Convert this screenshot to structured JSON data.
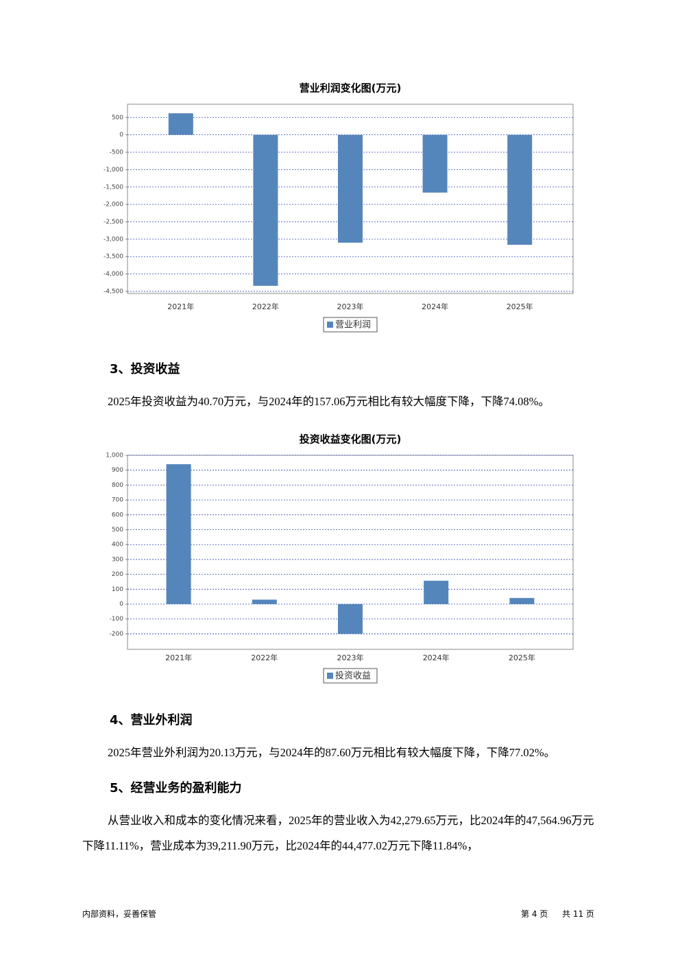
{
  "chart_data": [
    {
      "type": "bar",
      "title": "营业利润变化图(万元)",
      "categories": [
        "2021年",
        "2022年",
        "2023年",
        "2024年",
        "2025年"
      ],
      "series": [
        {
          "name": "营业利润",
          "color": "#5586bb",
          "values": [
            620,
            -4340,
            -3100,
            -1660,
            -3160
          ]
        }
      ],
      "ylim": [
        -4560,
        880
      ],
      "yticks": [
        500,
        0,
        -500,
        {
          "value": -1000,
          "label": "-1,000"
        },
        {
          "value": -1500,
          "label": "-1,500"
        },
        {
          "value": -2000,
          "label": "-2,000"
        },
        {
          "value": -2500,
          "label": "-2,500"
        },
        {
          "value": -3000,
          "label": "-3,000"
        },
        {
          "value": -3500,
          "label": "-3,500"
        },
        {
          "value": -4000,
          "label": "-4,000"
        },
        {
          "value": -4500,
          "label": "-4,500"
        }
      ],
      "grid": true
    },
    {
      "type": "bar",
      "title": "投资收益变化图(万元)",
      "categories": [
        "2021年",
        "2022年",
        "2023年",
        "2024年",
        "2025年"
      ],
      "series": [
        {
          "name": "投资收益",
          "color": "#5586bb",
          "values": [
            940,
            30,
            -200,
            157,
            41
          ]
        }
      ],
      "ylim": [
        -304,
        1000
      ],
      "yticks": [
        {
          "value": 1000,
          "label": "1,000"
        },
        900,
        800,
        700,
        600,
        500,
        400,
        300,
        200,
        100,
        0,
        -100,
        -200
      ],
      "grid": true
    }
  ],
  "document": {
    "sections": [
      {
        "heading": "3、投资收益",
        "text": "2025年投资收益为40.70万元，与2024年的157.06万元相比有较大幅度下降，下降74.08%。"
      },
      {
        "heading": "4、营业外利润",
        "text": "2025年营业外利润为20.13万元，与2024年的87.60万元相比有较大幅度下降，下降77.02%。"
      },
      {
        "heading": "5、经营业务的盈利能力",
        "text": "从营业收入和成本的变化情况来看，2025年的营业收入为42,279.65万元，比2024年的47,564.96万元下降11.11%，营业成本为39,211.90万元，比2024年的44,477.02万元下降11.84%，"
      }
    ],
    "footer": {
      "left": "内部资料，妥善保管",
      "page": "第 4 页",
      "total": "共 11 页"
    }
  }
}
